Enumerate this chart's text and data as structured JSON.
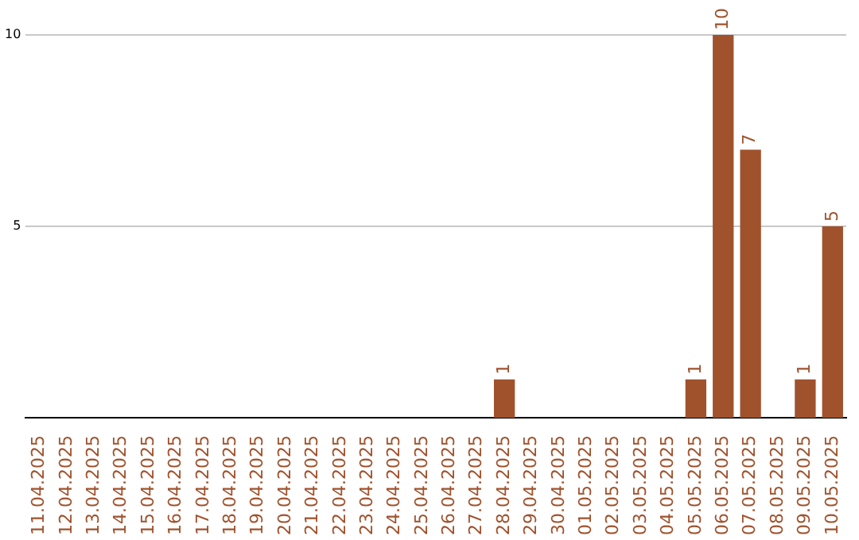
{
  "chart_data": {
    "type": "bar",
    "categories": [
      "11.04.2025",
      "12.04.2025",
      "13.04.2025",
      "14.04.2025",
      "15.04.2025",
      "16.04.2025",
      "17.04.2025",
      "18.04.2025",
      "19.04.2025",
      "20.04.2025",
      "21.04.2025",
      "22.04.2025",
      "23.04.2025",
      "24.04.2025",
      "25.04.2025",
      "26.04.2025",
      "27.04.2025",
      "28.04.2025",
      "29.04.2025",
      "30.04.2025",
      "01.05.2025",
      "02.05.2025",
      "03.05.2025",
      "04.05.2025",
      "05.05.2025",
      "06.05.2025",
      "07.05.2025",
      "08.05.2025",
      "09.05.2025",
      "10.05.2025"
    ],
    "values": [
      0,
      0,
      0,
      0,
      0,
      0,
      0,
      0,
      0,
      0,
      0,
      0,
      0,
      0,
      0,
      0,
      0,
      1,
      0,
      0,
      0,
      0,
      0,
      0,
      1,
      10,
      7,
      0,
      1,
      5
    ],
    "value_labels": [
      null,
      null,
      null,
      null,
      null,
      null,
      null,
      null,
      null,
      null,
      null,
      null,
      null,
      null,
      null,
      null,
      null,
      "1",
      null,
      null,
      null,
      null,
      null,
      null,
      "1",
      "10",
      "7",
      null,
      "1",
      "5"
    ],
    "color": "#a0522d",
    "ylim": [
      0,
      10
    ],
    "yticks": [
      5,
      10
    ],
    "grid": "y",
    "legend": false
  }
}
